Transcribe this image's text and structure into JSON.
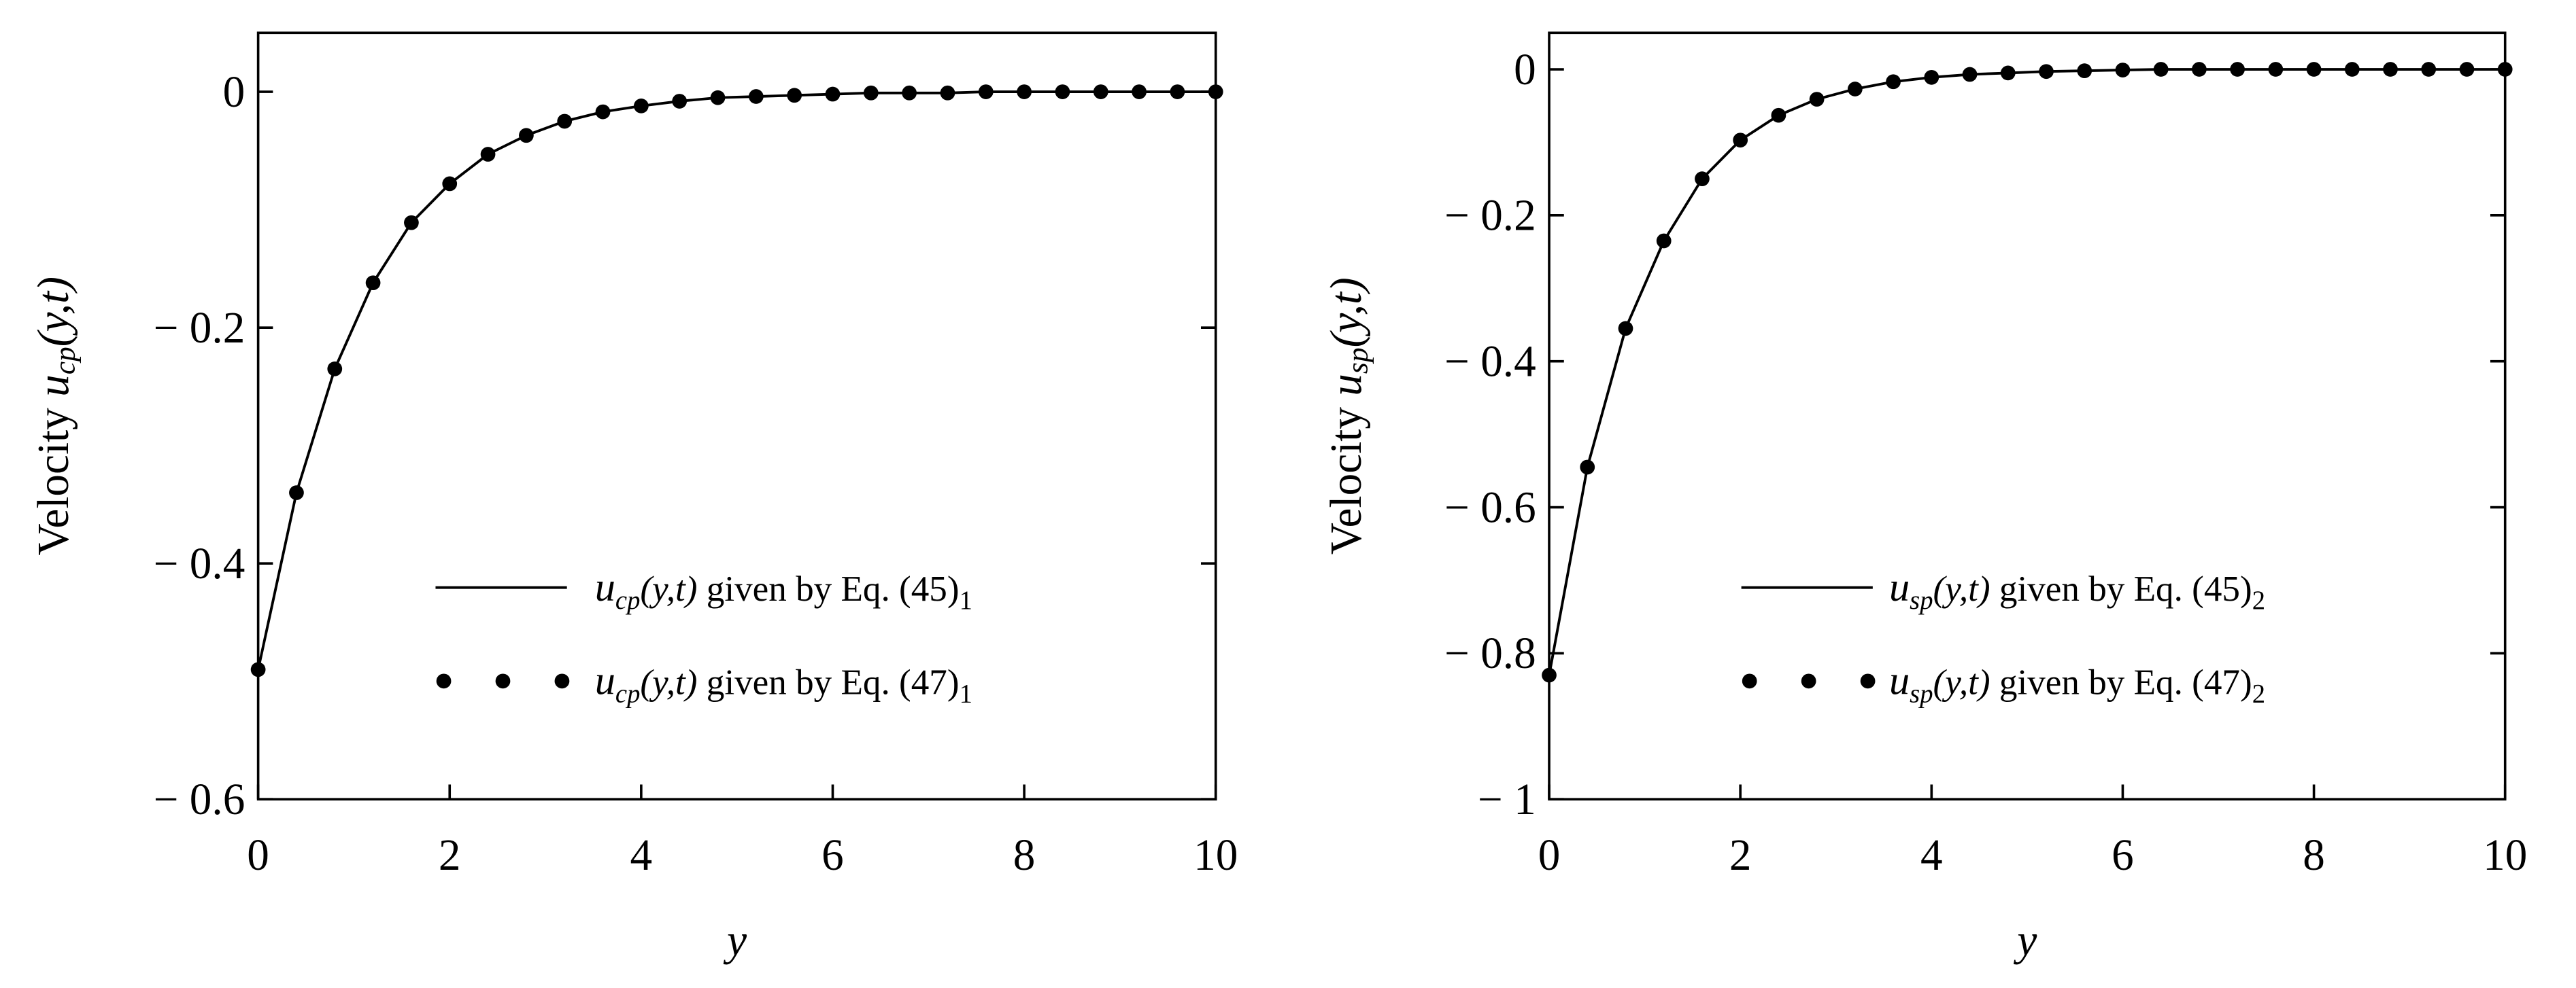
{
  "chart_data": [
    {
      "type": "line",
      "y_label": {
        "prefix": "Velocity",
        "func": "u",
        "sub": "cp",
        "args": "(y,t)"
      },
      "x_label": "y",
      "x": [
        0,
        0.4,
        0.8,
        1.2,
        1.6,
        2.0,
        2.4,
        2.8,
        3.2,
        3.6,
        4.0,
        4.4,
        4.8,
        5.2,
        5.6,
        6.0,
        6.4,
        6.8,
        7.2,
        7.6,
        8.0,
        8.4,
        8.8,
        9.2,
        9.6,
        10.0
      ],
      "series": [
        {
          "name": {
            "func": "u",
            "sub": "cp",
            "args": "(y,t)",
            "text": " given by Eq. (45)",
            "eq_sub": "1"
          },
          "style": "line",
          "color": "#000000",
          "values": [
            -0.49,
            -0.34,
            -0.235,
            -0.162,
            -0.111,
            -0.078,
            -0.053,
            -0.037,
            -0.025,
            -0.017,
            -0.012,
            -0.008,
            -0.005,
            -0.004,
            -0.003,
            -0.002,
            -0.001,
            -0.001,
            -0.001,
            0,
            0,
            0,
            0,
            0,
            0,
            0
          ]
        },
        {
          "name": {
            "func": "u",
            "sub": "cp",
            "args": "(y,t)",
            "text": " given by Eq. (47)",
            "eq_sub": "1"
          },
          "style": "dots",
          "color": "#000000",
          "values": [
            -0.49,
            -0.34,
            -0.235,
            -0.162,
            -0.111,
            -0.078,
            -0.053,
            -0.037,
            -0.025,
            -0.017,
            -0.012,
            -0.008,
            -0.005,
            -0.004,
            -0.003,
            -0.002,
            -0.001,
            -0.001,
            -0.001,
            0,
            0,
            0,
            0,
            0,
            0,
            0
          ]
        }
      ],
      "xlim": [
        0,
        10
      ],
      "xticks": [
        0,
        2,
        4,
        6,
        8,
        10
      ],
      "ylim": [
        -0.6,
        0.05
      ],
      "yticks": [
        0,
        {
          "value": -0.2,
          "label": "− 0.2"
        },
        {
          "value": -0.4,
          "label": "− 0.4"
        },
        {
          "value": -0.6,
          "label": "− 0.6"
        }
      ]
    },
    {
      "type": "line",
      "y_label": {
        "prefix": "Velocity",
        "func": "u",
        "sub": "sp",
        "args": "(y,t)"
      },
      "x_label": "y",
      "x": [
        0,
        0.4,
        0.8,
        1.2,
        1.6,
        2.0,
        2.4,
        2.8,
        3.2,
        3.6,
        4.0,
        4.4,
        4.8,
        5.2,
        5.6,
        6.0,
        6.4,
        6.8,
        7.2,
        7.6,
        8.0,
        8.4,
        8.8,
        9.2,
        9.6,
        10.0
      ],
      "series": [
        {
          "name": {
            "func": "u",
            "sub": "sp",
            "args": "(y,t)",
            "text": " given by Eq. (45)",
            "eq_sub": "2"
          },
          "style": "line",
          "color": "#000000",
          "values": [
            -0.83,
            -0.545,
            -0.355,
            -0.235,
            -0.15,
            -0.097,
            -0.063,
            -0.041,
            -0.027,
            -0.017,
            -0.011,
            -0.007,
            -0.005,
            -0.003,
            -0.002,
            -0.001,
            0,
            0,
            0,
            0,
            0,
            0,
            0,
            0,
            0,
            0
          ]
        },
        {
          "name": {
            "func": "u",
            "sub": "sp",
            "args": "(y,t)",
            "text": " given by Eq. (47)",
            "eq_sub": "2"
          },
          "style": "dots",
          "color": "#000000",
          "values": [
            -0.83,
            -0.545,
            -0.355,
            -0.235,
            -0.15,
            -0.097,
            -0.063,
            -0.041,
            -0.027,
            -0.017,
            -0.011,
            -0.007,
            -0.005,
            -0.003,
            -0.002,
            -0.001,
            0,
            0,
            0,
            0,
            0,
            0,
            0,
            0,
            0,
            0
          ]
        }
      ],
      "xlim": [
        0,
        10
      ],
      "xticks": [
        0,
        2,
        4,
        6,
        8,
        10
      ],
      "ylim": [
        -1,
        0.05
      ],
      "yticks": [
        0,
        {
          "value": -0.2,
          "label": "− 0.2"
        },
        {
          "value": -0.4,
          "label": "− 0.4"
        },
        {
          "value": -0.6,
          "label": "− 0.6"
        },
        {
          "value": -0.8,
          "label": "− 0.8"
        },
        {
          "value": -1,
          "label": "− 1"
        }
      ]
    }
  ]
}
